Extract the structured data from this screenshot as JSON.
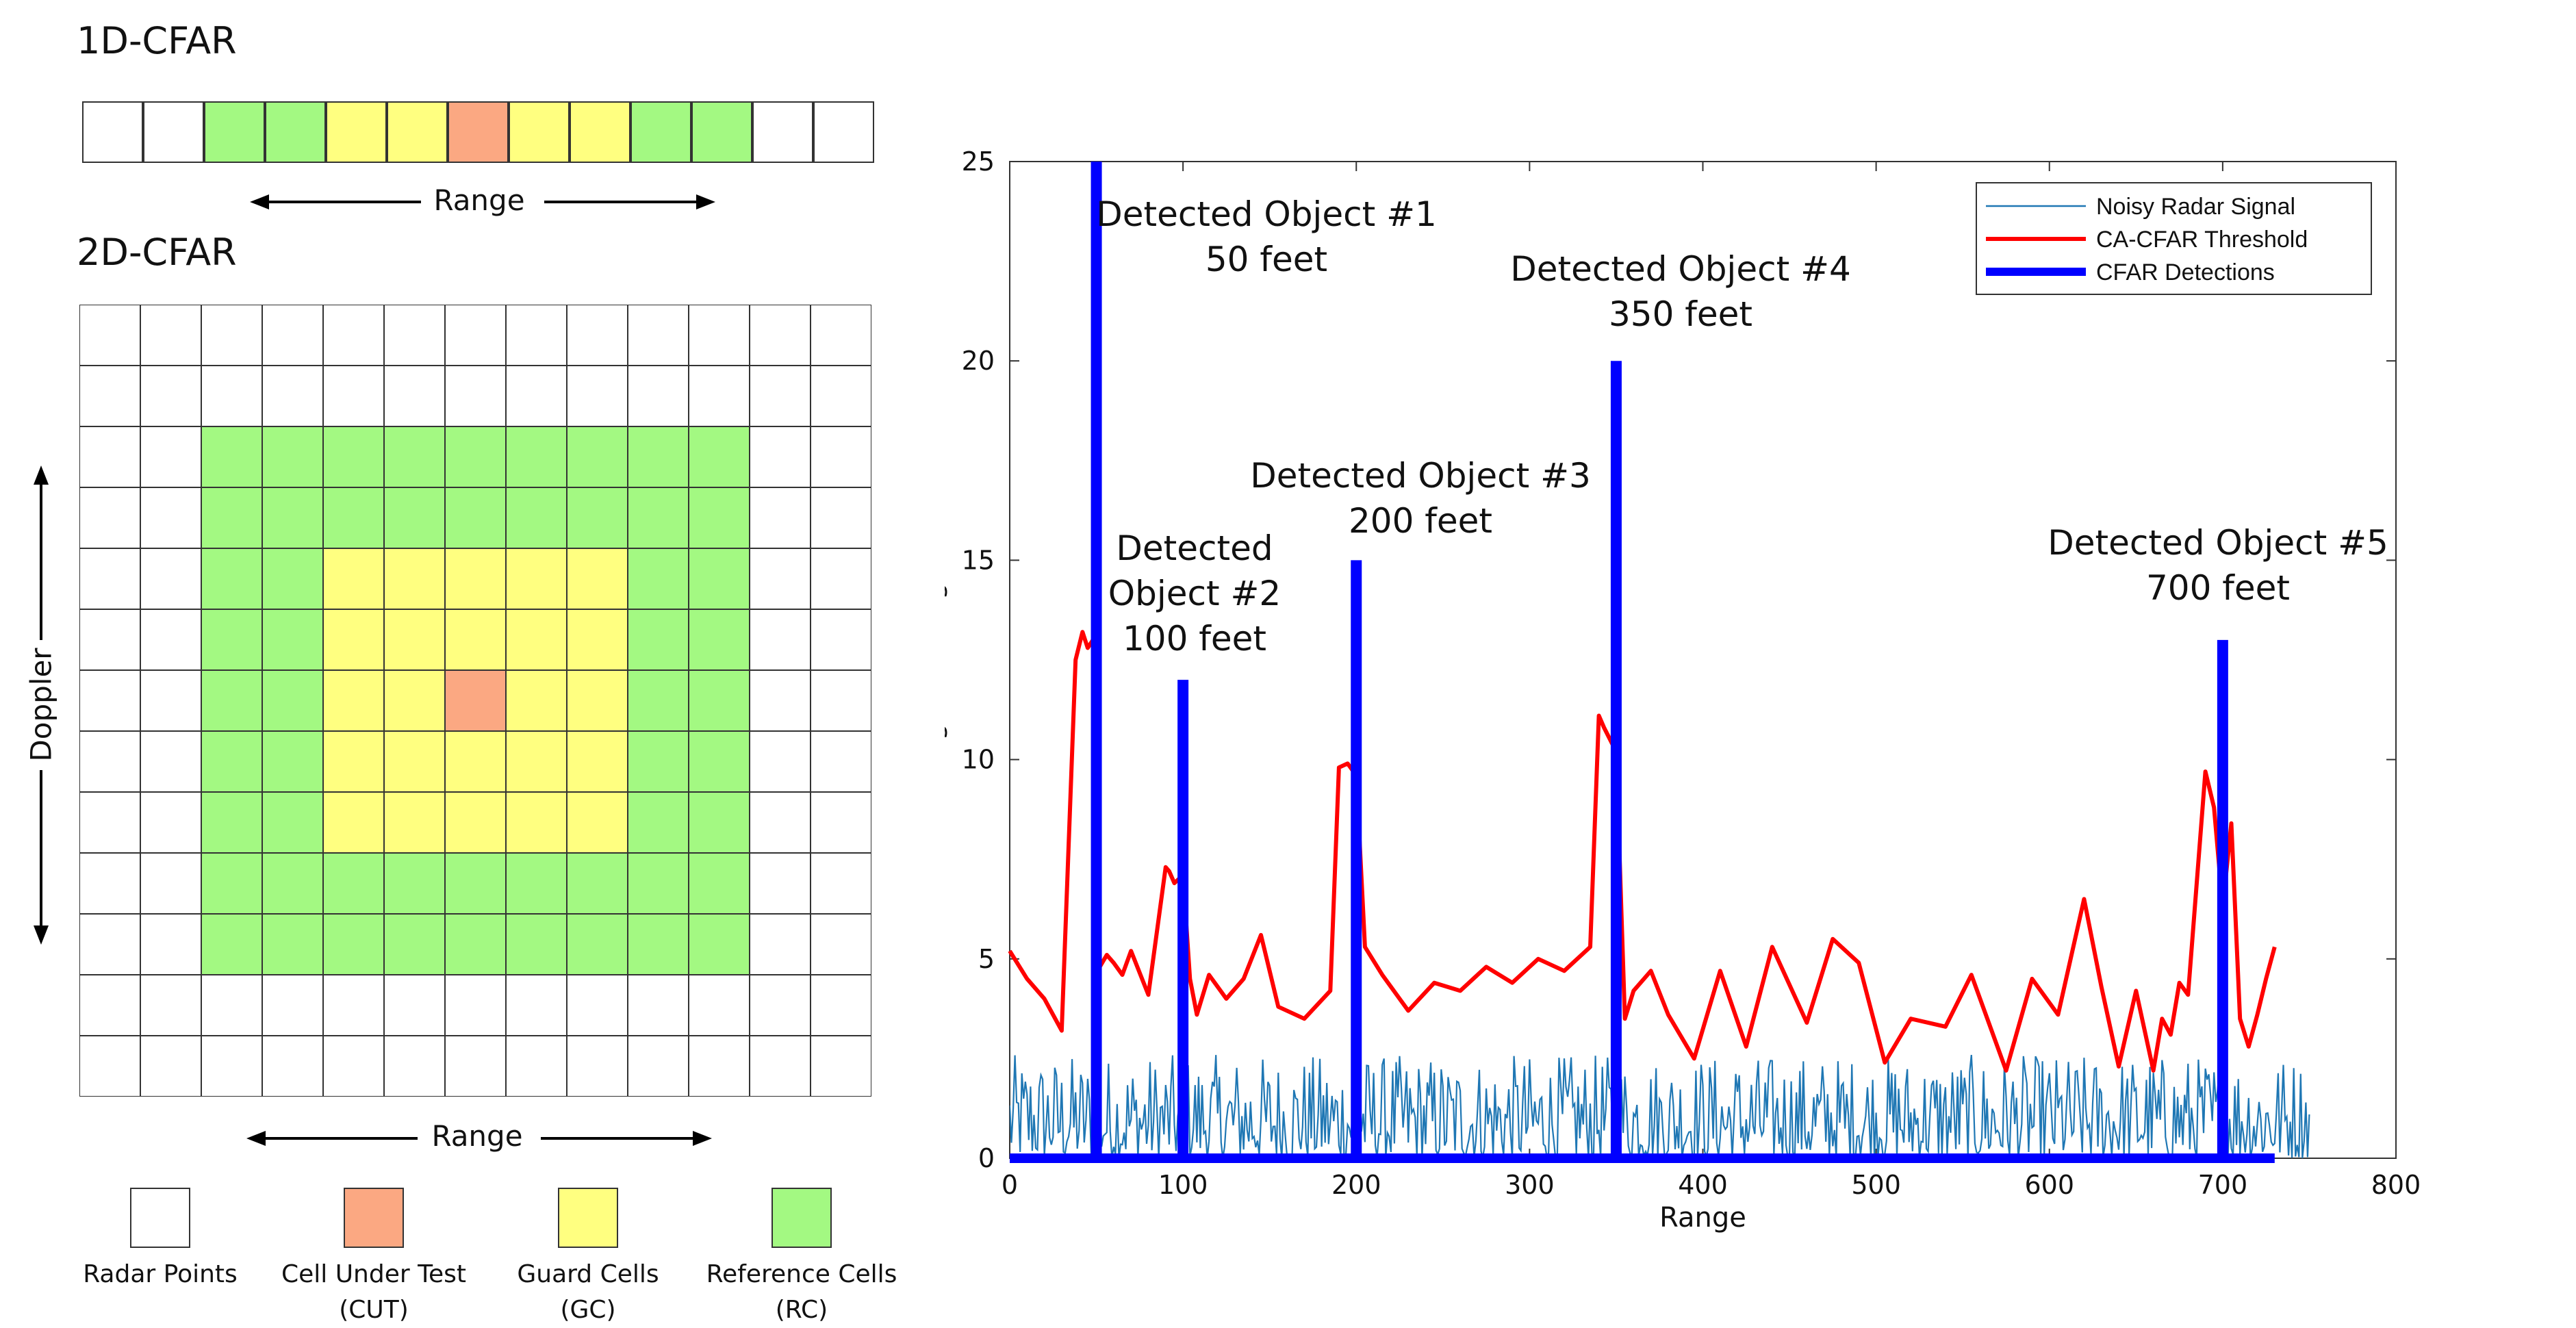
{
  "left": {
    "title_1d": "1D-CFAR",
    "title_2d": "2D-CFAR",
    "range_label": "Range",
    "doppler_label": "Doppler",
    "cells_1d": [
      "radar",
      "radar",
      "reference",
      "reference",
      "guard",
      "guard",
      "cut",
      "guard",
      "guard",
      "reference",
      "reference",
      "radar",
      "radar"
    ],
    "legend": [
      {
        "key": "radar",
        "line1": "Radar Points",
        "line2": ""
      },
      {
        "key": "cut",
        "line1": "Cell Under Test",
        "line2": "(CUT)"
      },
      {
        "key": "guard",
        "line1": "Guard Cells",
        "line2": "(GC)"
      },
      {
        "key": "reference",
        "line1": "Reference Cells",
        "line2": "(RC)"
      }
    ]
  },
  "colors": {
    "radar": "#ffffff",
    "cut": "#fba882",
    "guard": "#ffff80",
    "reference": "#a3f982",
    "signal": "#1f77b4",
    "threshold": "#ff0000",
    "detection": "#0000ff"
  },
  "chart_data": {
    "type": "line",
    "title": "",
    "xlabel": "Range",
    "ylabel": "Signal Strength",
    "xlim": [
      0,
      800
    ],
    "ylim": [
      0,
      25
    ],
    "xticks": [
      "0",
      "100",
      "200",
      "300",
      "400",
      "500",
      "600",
      "700",
      "800"
    ],
    "yticks": [
      "0",
      "5",
      "10",
      "15",
      "20",
      "25"
    ],
    "legend": [
      "Noisy Radar Signal",
      "CA-CFAR Threshold",
      "CFAR Detections"
    ],
    "series": [
      {
        "name": "CA-CFAR Threshold",
        "x": [
          0,
          10,
          20,
          30,
          38,
          42,
          45,
          48,
          52,
          56,
          60,
          65,
          70,
          80,
          90,
          92,
          95,
          100,
          104,
          108,
          115,
          125,
          135,
          145,
          155,
          170,
          185,
          190,
          195,
          200,
          205,
          215,
          230,
          245,
          260,
          275,
          290,
          305,
          320,
          335,
          340,
          343,
          350,
          355,
          360,
          370,
          380,
          395,
          410,
          425,
          440,
          460,
          475,
          490,
          505,
          520,
          540,
          555,
          575,
          590,
          605,
          620,
          630,
          640,
          650,
          660,
          665,
          670,
          675,
          680,
          690,
          695,
          700,
          705,
          710,
          715,
          720,
          725,
          730
        ],
        "values": [
          5.2,
          4.5,
          4.0,
          3.2,
          12.5,
          13.2,
          12.8,
          13.0,
          4.8,
          5.1,
          4.9,
          4.6,
          5.2,
          4.1,
          7.3,
          7.2,
          6.9,
          7.1,
          4.5,
          3.6,
          4.6,
          4.0,
          4.5,
          5.6,
          3.8,
          3.5,
          4.2,
          9.8,
          9.9,
          9.6,
          5.3,
          4.6,
          3.7,
          4.4,
          4.2,
          4.8,
          4.4,
          5.0,
          4.7,
          5.3,
          11.1,
          10.8,
          10.2,
          3.5,
          4.2,
          4.7,
          3.6,
          2.5,
          4.7,
          2.8,
          5.3,
          3.4,
          5.5,
          4.9,
          2.4,
          3.5,
          3.3,
          4.6,
          2.2,
          4.5,
          3.6,
          6.5,
          4.3,
          2.3,
          4.2,
          2.2,
          3.5,
          3.1,
          4.4,
          4.1,
          9.7,
          8.8,
          6.3,
          8.4,
          3.5,
          2.8,
          3.6,
          4.5,
          5.3
        ]
      },
      {
        "name": "CFAR Detections",
        "x": [
          50,
          100,
          200,
          350,
          700
        ],
        "values": [
          25,
          12,
          15,
          20,
          13
        ],
        "baseline_xlim": [
          0,
          730
        ]
      },
      {
        "name": "Noisy Radar Signal",
        "x_range": [
          0,
          750
        ],
        "amplitude_max": 2.6,
        "generated": true
      }
    ],
    "annotations": [
      {
        "lines": [
          "Detected Object #1",
          "50 feet"
        ]
      },
      {
        "lines": [
          "Detected",
          "Object #2",
          "100 feet"
        ]
      },
      {
        "lines": [
          "Detected Object #3",
          "200 feet"
        ]
      },
      {
        "lines": [
          "Detected Object #4",
          "350 feet"
        ]
      },
      {
        "lines": [
          "Detected Object #5",
          "700 feet"
        ]
      }
    ]
  }
}
